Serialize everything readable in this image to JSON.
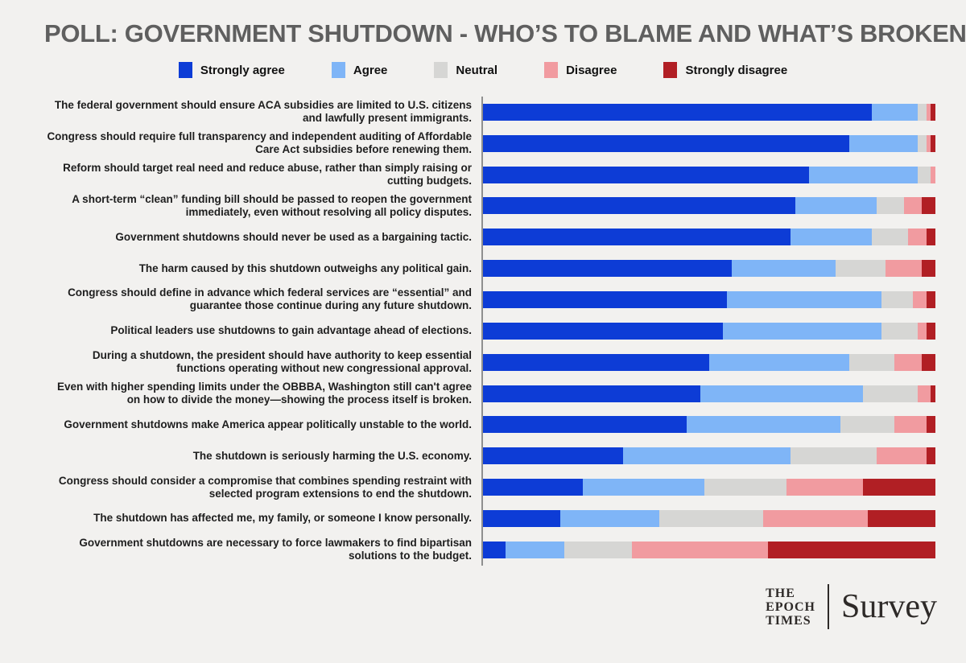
{
  "title": "POLL: GOVERNMENT SHUTDOWN - WHO’S TO BLAME AND WHAT’S BROKEN?",
  "colors": {
    "background": "#f2f1ef",
    "title_text": "#5f5f5f",
    "axis_line": "#8f8f8f",
    "strongly_agree": "#0d3cd6",
    "agree": "#7fb5f7",
    "neutral": "#d6d6d4",
    "disagree": "#f19ba0",
    "strongly_disagree": "#b11f24"
  },
  "chart_data": {
    "type": "bar",
    "orientation": "horizontal_stacked",
    "unit": "percent",
    "xlim": [
      0,
      100
    ],
    "grid": false,
    "legend_position": "top-center",
    "title": "POLL: GOVERNMENT SHUTDOWN - WHO’S TO BLAME AND WHAT’S BROKEN?",
    "xlabel": "",
    "ylabel": "",
    "categories": [
      "The federal government should ensure ACA subsidies are limited to U.S. citizens and lawfully present immigrants.",
      "Congress should require full transparency and independent auditing of Affordable Care Act subsidies before renewing them.",
      "Reform should target real need and reduce abuse, rather than simply raising or cutting budgets.",
      "A short-term “clean” funding bill should be passed to reopen the government immediately, even without resolving all policy disputes.",
      "Government shutdowns should never be used as a bargaining tactic.",
      "The harm caused by this shutdown outweighs any political gain.",
      "Congress should define in advance which federal services are “essential” and guarantee those continue during any future shutdown.",
      "Political leaders use shutdowns to gain advantage ahead of elections.",
      "During a shutdown, the president should have authority to keep essential functions operating without new congressional approval.",
      "Even with higher spending limits under the OBBBA, Washington still can't agree on how to divide the money—showing the process itself is broken.",
      "Government shutdowns make America appear politically unstable to the world.",
      "The shutdown is seriously harming the U.S. economy.",
      "Congress should consider a compromise that combines spending restraint with selected program extensions to end the shutdown.",
      "The shutdown has affected me, my family, or someone I know personally.",
      "Government shutdowns are necessary to force lawmakers to find bipartisan solutions to the budget."
    ],
    "series": [
      {
        "name": "Strongly agree",
        "color": "#0d3cd6",
        "values": [
          86,
          81,
          72,
          69,
          68,
          55,
          54,
          53,
          50,
          48,
          45,
          31,
          22,
          17,
          5
        ]
      },
      {
        "name": "Agree",
        "color": "#7fb5f7",
        "values": [
          10,
          15,
          24,
          18,
          18,
          23,
          34,
          35,
          31,
          36,
          34,
          37,
          27,
          22,
          13
        ]
      },
      {
        "name": "Neutral",
        "color": "#d6d6d4",
        "values": [
          2,
          2,
          3,
          6,
          8,
          11,
          7,
          8,
          10,
          12,
          12,
          19,
          18,
          23,
          15
        ]
      },
      {
        "name": "Disagree",
        "color": "#f19ba0",
        "values": [
          1,
          1,
          1,
          4,
          4,
          8,
          3,
          2,
          6,
          3,
          7,
          11,
          17,
          23,
          30
        ]
      },
      {
        "name": "Strongly disagree",
        "color": "#b11f24",
        "values": [
          1,
          1,
          0,
          3,
          2,
          3,
          2,
          2,
          3,
          1,
          2,
          2,
          16,
          15,
          37
        ]
      }
    ]
  },
  "footer": {
    "brand_lines": [
      "THE",
      "EPOCH",
      "TIMES"
    ],
    "product": "Survey"
  }
}
